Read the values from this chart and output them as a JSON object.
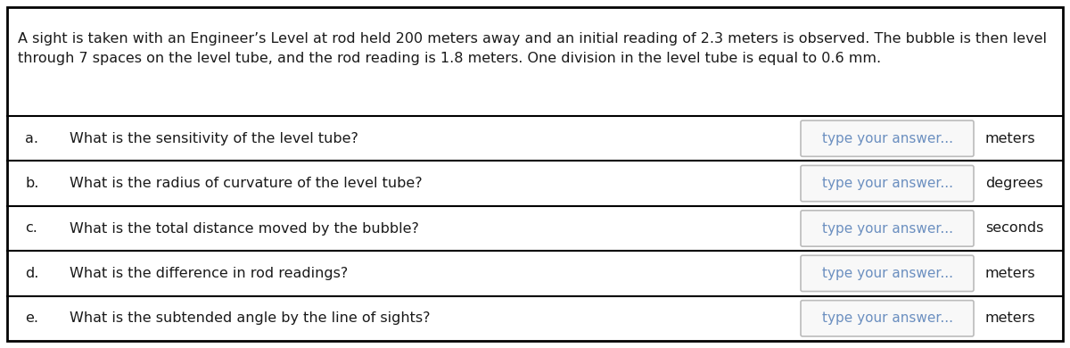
{
  "description_text_line1": "A sight is taken with an Engineer’s Level at rod held 200 meters away and an initial reading of 2.3 meters is observed. The bubble is then level",
  "description_text_line2": "through 7 spaces on the level tube, and the rod reading is 1.8 meters. One division in the level tube is equal to 0.6 mm.",
  "questions": [
    {
      "label": "a.",
      "text": "What is the sensitivity of the level tube?",
      "unit": "meters"
    },
    {
      "label": "b.",
      "text": "What is the radius of curvature of the level tube?",
      "unit": "degrees"
    },
    {
      "label": "c.",
      "text": "What is the total distance moved by the bubble?",
      "unit": "seconds"
    },
    {
      "label": "d.",
      "text": "What is the difference in rod readings?",
      "unit": "meters"
    },
    {
      "label": "e.",
      "text": "What is the subtended angle by the line of sights?",
      "unit": "meters"
    }
  ],
  "answer_placeholder": "type your answer...",
  "outer_border_color": "#000000",
  "inner_border_color": "#000000",
  "bg_color": "#ffffff",
  "text_color": "#1a1a1a",
  "answer_box_border_color": "#bbbbbb",
  "answer_box_fill_color": "#f8f8f8",
  "answer_text_color": "#6b8fc0",
  "unit_text_color": "#1a1a1a",
  "font_size": 11.5,
  "label_font_size": 11.5,
  "unit_font_size": 11.5,
  "desc_font_size": 11.5
}
